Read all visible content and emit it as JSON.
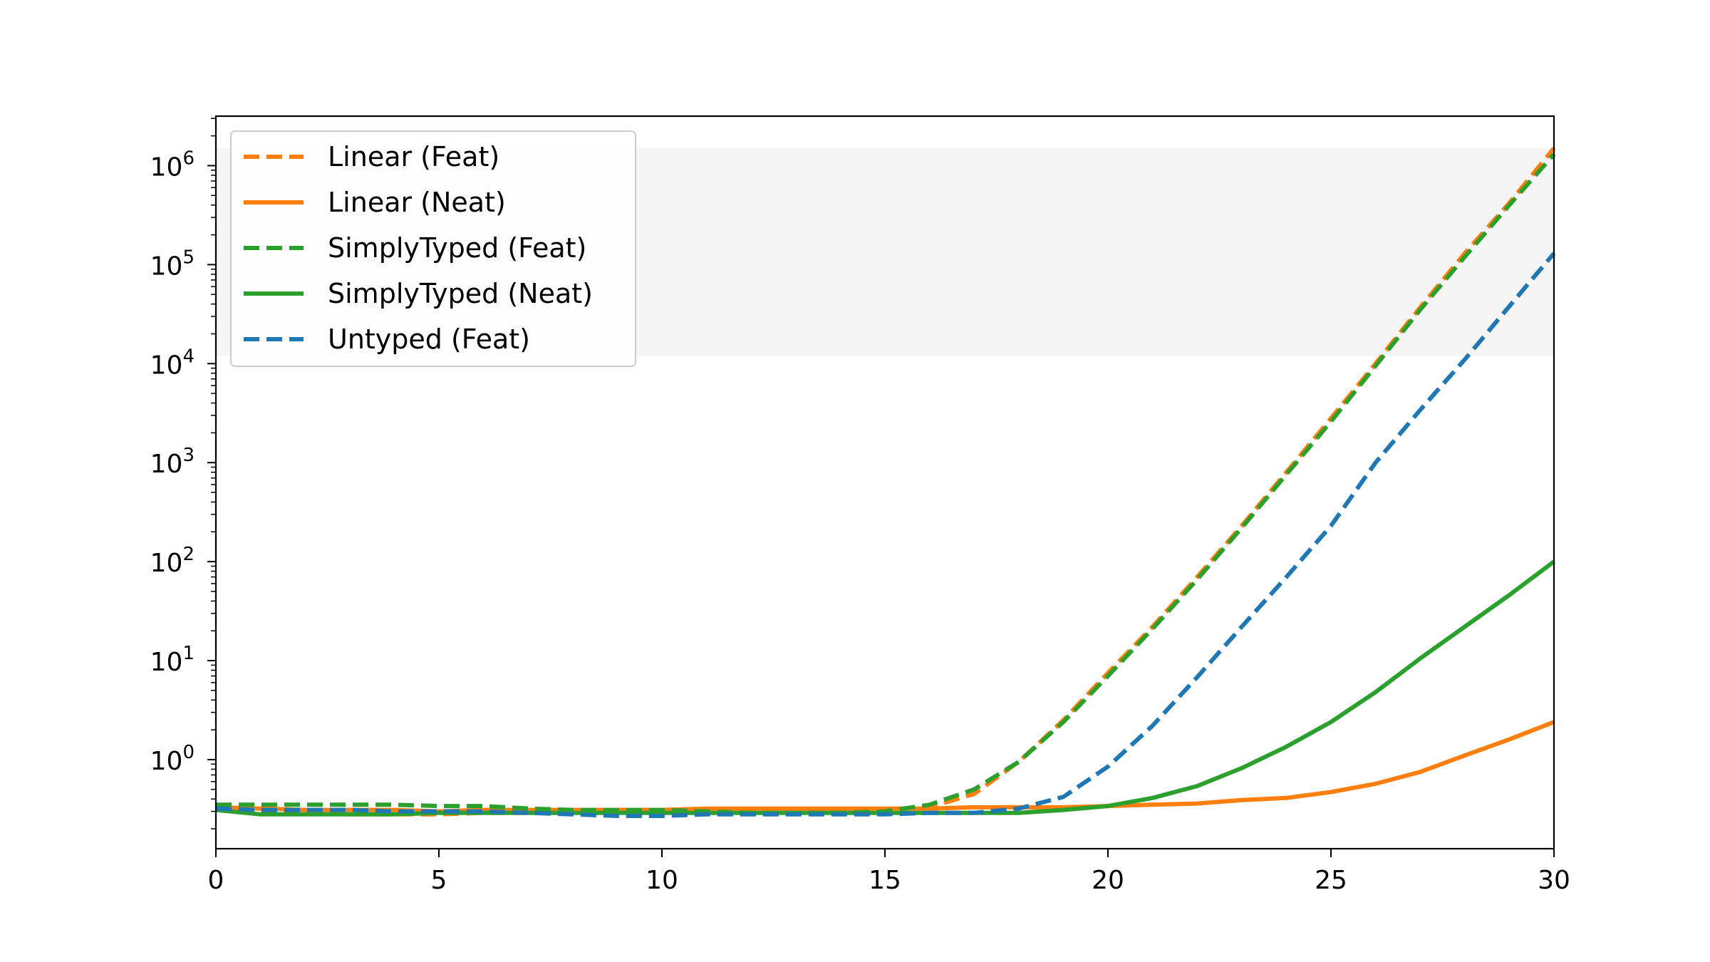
{
  "chart_data": {
    "type": "line",
    "title": "",
    "xlabel": "",
    "ylabel": "",
    "xlim": [
      0,
      30
    ],
    "ylim_log10": [
      -0.9,
      6.5
    ],
    "yscale": "log",
    "grid": false,
    "legend_placement": "top-left",
    "x_ticks": [
      0,
      5,
      10,
      15,
      20,
      25,
      30
    ],
    "y_ticks": [
      {
        "base": "10",
        "exp": "0",
        "value": 1
      },
      {
        "base": "10",
        "exp": "1",
        "value": 10
      },
      {
        "base": "10",
        "exp": "2",
        "value": 100
      },
      {
        "base": "10",
        "exp": "3",
        "value": 1000
      },
      {
        "base": "10",
        "exp": "4",
        "value": 10000
      },
      {
        "base": "10",
        "exp": "5",
        "value": 100000
      },
      {
        "base": "10",
        "exp": "6",
        "value": 1000000
      }
    ],
    "shaded_band": {
      "y_from": 12000,
      "y_to": 1500000,
      "color": "#f5f5f5"
    },
    "x": [
      0,
      1,
      2,
      3,
      4,
      5,
      6,
      7,
      8,
      9,
      10,
      11,
      12,
      13,
      14,
      15,
      16,
      17,
      18,
      19,
      20,
      21,
      22,
      23,
      24,
      25,
      26,
      27,
      28,
      29,
      30
    ],
    "series": [
      {
        "name": "Linear (Feat)",
        "color": "#ff7f0e",
        "dash": "dashed",
        "values": [
          0.34,
          0.29,
          0.29,
          0.28,
          0.28,
          0.28,
          0.29,
          0.29,
          0.3,
          0.3,
          0.3,
          0.3,
          0.3,
          0.3,
          0.3,
          0.31,
          0.33,
          0.45,
          0.95,
          2.5,
          7.5,
          22,
          70,
          230,
          800,
          2800,
          10000,
          37000,
          130000,
          420000,
          1500000
        ]
      },
      {
        "name": "Linear (Neat)",
        "color": "#ff7f0e",
        "dash": "solid",
        "values": [
          0.33,
          0.32,
          0.31,
          0.31,
          0.31,
          0.3,
          0.31,
          0.31,
          0.31,
          0.31,
          0.31,
          0.32,
          0.32,
          0.32,
          0.32,
          0.32,
          0.32,
          0.33,
          0.33,
          0.33,
          0.34,
          0.35,
          0.36,
          0.39,
          0.41,
          0.47,
          0.57,
          0.75,
          1.1,
          1.6,
          2.4
        ]
      },
      {
        "name": "SimplyTyped (Feat)",
        "color": "#2ca02c",
        "dash": "dashed",
        "values": [
          0.35,
          0.35,
          0.35,
          0.35,
          0.35,
          0.34,
          0.34,
          0.32,
          0.31,
          0.31,
          0.31,
          0.3,
          0.29,
          0.29,
          0.29,
          0.3,
          0.35,
          0.5,
          0.95,
          2.4,
          7.0,
          21,
          66,
          220,
          760,
          2600,
          9500,
          35000,
          120000,
          400000,
          1300000
        ]
      },
      {
        "name": "SimplyTyped (Neat)",
        "color": "#2ca02c",
        "dash": "solid",
        "values": [
          0.31,
          0.28,
          0.28,
          0.28,
          0.28,
          0.29,
          0.29,
          0.29,
          0.29,
          0.29,
          0.29,
          0.29,
          0.29,
          0.29,
          0.29,
          0.29,
          0.29,
          0.29,
          0.29,
          0.31,
          0.34,
          0.41,
          0.54,
          0.82,
          1.35,
          2.4,
          4.8,
          10.5,
          22,
          46,
          100
        ]
      },
      {
        "name": "Untyped (Feat)",
        "color": "#1f77b4",
        "dash": "dashed",
        "values": [
          0.32,
          0.31,
          0.31,
          0.31,
          0.3,
          0.3,
          0.3,
          0.29,
          0.28,
          0.27,
          0.27,
          0.28,
          0.28,
          0.28,
          0.28,
          0.28,
          0.29,
          0.29,
          0.32,
          0.42,
          0.85,
          2.2,
          6.8,
          22,
          70,
          230,
          1000,
          3400,
          11000,
          38000,
          130000
        ]
      }
    ]
  }
}
